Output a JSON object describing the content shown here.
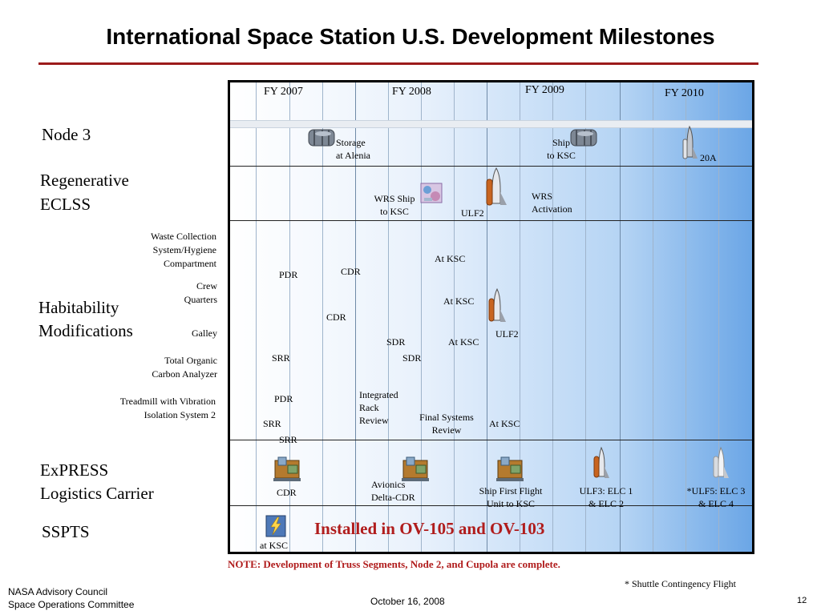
{
  "title": "International Space Station U.S. Development Milestones",
  "fiscal_years": [
    "FY 2007",
    "FY 2008",
    "FY 2009",
    "FY 2010"
  ],
  "rows": {
    "node3": "Node 3",
    "regen_line1": "Regenerative",
    "regen_line2": "ECLSS",
    "hab_line1": "Habitability",
    "hab_line2": "Modifications",
    "express_line1": "ExPRESS",
    "express_line2": "Logistics Carrier",
    "sspts": "SSPTS"
  },
  "sub_rows": {
    "waste_1": "Waste Collection",
    "waste_2": "System/Hygiene",
    "waste_3": "Compartment",
    "crew_1": "Crew",
    "crew_2": "Quarters",
    "galley": "Galley",
    "toc_1": "Total Organic",
    "toc_2": "Carbon Analyzer",
    "treadmill_1": "Treadmill with Vibration",
    "treadmill_2": "Isolation System 2"
  },
  "events": {
    "storage_1": "Storage",
    "storage_2": "at Alenia",
    "ship_1": "Ship",
    "ship_2": "to KSC",
    "n3_20a": "20A",
    "wrs_ship_1": "WRS Ship",
    "wrs_ship_2": "to KSC",
    "regen_ulf2": "ULF2",
    "wrs_act_1": "WRS",
    "wrs_act_2": "Activation",
    "waste_pdr": "PDR",
    "waste_cdr": "CDR",
    "waste_atksc": "At KSC",
    "crew_cdr": "CDR",
    "crew_atksc": "At KSC",
    "galley_sdr": "SDR",
    "galley_atksc": "At KSC",
    "hab_ulf2": "ULF2",
    "toc_srr": "SRR",
    "toc_sdr": "SDR",
    "tm_pdr": "PDR",
    "tm_irr_1": "Integrated",
    "tm_irr_2": "Rack",
    "tm_irr_3": "Review",
    "tm_fsr_1": "Final Systems",
    "tm_fsr_2": "Review",
    "tm_atksc": "At KSC",
    "tm_srr1": "SRR",
    "tm_srr2": "SRR",
    "elc_cdr": "CDR",
    "elc_av_1": "Avionics",
    "elc_av_2": "Delta-CDR",
    "elc_ship_1": "Ship First Flight",
    "elc_ship_2": "Unit to KSC",
    "elc_ulf3_1": "ULF3: ELC 1",
    "elc_ulf3_2": "& ELC 2",
    "elc_ulf5_1": "*ULF5: ELC 3",
    "elc_ulf5_2": "& ELC 4",
    "sspts_ksc": "at KSC"
  },
  "installed": "Installed in OV-105 and OV-103",
  "note": "NOTE: Development of Truss Segments, Node 2, and Cupola are complete.",
  "footnote": "* Shuttle Contingency Flight",
  "footer": {
    "org_1": "NASA Advisory Council",
    "org_2": "Space Operations Committee",
    "date": "October 16, 2008",
    "page": "12"
  },
  "icons": {
    "shuttle": "shuttle-icon",
    "module": "module-icon",
    "pallet": "pallet-icon",
    "rack": "rack-icon",
    "power": "lightning-icon"
  },
  "colors": {
    "accent_red": "#b01c1c",
    "title_rule": "#9b1b1b"
  }
}
